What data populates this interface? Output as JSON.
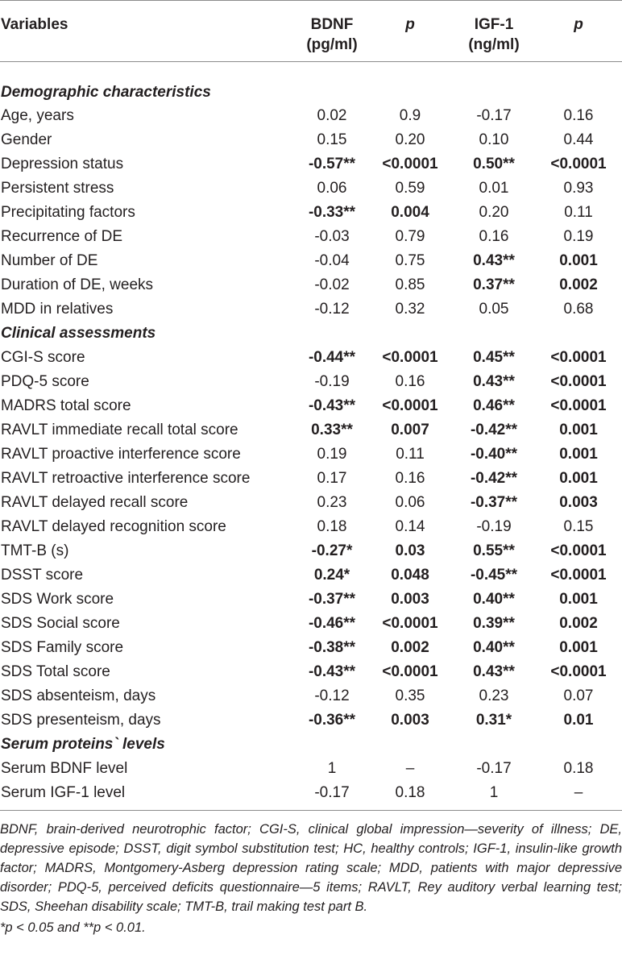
{
  "headers": [
    "Variables",
    "BDNF (pg/ml)",
    "p",
    "IGF-1 (ng/ml)",
    "p"
  ],
  "header_lines": {
    "bdnf": [
      "BDNF",
      "(pg/ml)"
    ],
    "igf": [
      "IGF-1",
      "(ng/ml)"
    ]
  },
  "rows": [
    {
      "section": "Demographic characteristics"
    },
    {
      "label": "Age, years",
      "cells": [
        {
          "v": "0.02",
          "b": false
        },
        {
          "v": "0.9",
          "b": false
        },
        {
          "v": "-0.17",
          "b": false
        },
        {
          "v": "0.16",
          "b": false
        }
      ]
    },
    {
      "label": "Gender",
      "cells": [
        {
          "v": "0.15",
          "b": false
        },
        {
          "v": "0.20",
          "b": false
        },
        {
          "v": "0.10",
          "b": false
        },
        {
          "v": "0.44",
          "b": false
        }
      ]
    },
    {
      "label": "Depression status",
      "cells": [
        {
          "v": "-0.57**",
          "b": true
        },
        {
          "v": "<0.0001",
          "b": true
        },
        {
          "v": "0.50**",
          "b": true
        },
        {
          "v": "<0.0001",
          "b": true
        }
      ]
    },
    {
      "label": "Persistent stress",
      "cells": [
        {
          "v": "0.06",
          "b": false
        },
        {
          "v": "0.59",
          "b": false
        },
        {
          "v": "0.01",
          "b": false
        },
        {
          "v": "0.93",
          "b": false
        }
      ]
    },
    {
      "label": "Precipitating factors",
      "cells": [
        {
          "v": "-0.33**",
          "b": true
        },
        {
          "v": "0.004",
          "b": true
        },
        {
          "v": "0.20",
          "b": false
        },
        {
          "v": "0.11",
          "b": false
        }
      ]
    },
    {
      "label": "Recurrence of DE",
      "cells": [
        {
          "v": "-0.03",
          "b": false
        },
        {
          "v": "0.79",
          "b": false
        },
        {
          "v": "0.16",
          "b": false
        },
        {
          "v": "0.19",
          "b": false
        }
      ]
    },
    {
      "label": "Number of DE",
      "cells": [
        {
          "v": "-0.04",
          "b": false
        },
        {
          "v": "0.75",
          "b": false
        },
        {
          "v": "0.43**",
          "b": true
        },
        {
          "v": "0.001",
          "b": true
        }
      ]
    },
    {
      "label": "Duration of DE, weeks",
      "cells": [
        {
          "v": "-0.02",
          "b": false
        },
        {
          "v": "0.85",
          "b": false
        },
        {
          "v": "0.37**",
          "b": true
        },
        {
          "v": "0.002",
          "b": true
        }
      ]
    },
    {
      "label": "MDD in relatives",
      "cells": [
        {
          "v": "-0.12",
          "b": false
        },
        {
          "v": "0.32",
          "b": false
        },
        {
          "v": "0.05",
          "b": false
        },
        {
          "v": "0.68",
          "b": false
        }
      ]
    },
    {
      "section": "Clinical assessments"
    },
    {
      "label": "CGI-S score",
      "cells": [
        {
          "v": "-0.44**",
          "b": true
        },
        {
          "v": "<0.0001",
          "b": true
        },
        {
          "v": "0.45**",
          "b": true
        },
        {
          "v": "<0.0001",
          "b": true
        }
      ]
    },
    {
      "label": "PDQ-5 score",
      "cells": [
        {
          "v": "-0.19",
          "b": false
        },
        {
          "v": "0.16",
          "b": false
        },
        {
          "v": "0.43**",
          "b": true
        },
        {
          "v": "<0.0001",
          "b": true
        }
      ]
    },
    {
      "label": "MADRS total score",
      "cells": [
        {
          "v": "-0.43**",
          "b": true
        },
        {
          "v": "<0.0001",
          "b": true
        },
        {
          "v": "0.46**",
          "b": true
        },
        {
          "v": "<0.0001",
          "b": true
        }
      ]
    },
    {
      "label": "RAVLT immediate recall total score",
      "cells": [
        {
          "v": "0.33**",
          "b": true
        },
        {
          "v": "0.007",
          "b": true
        },
        {
          "v": "-0.42**",
          "b": true
        },
        {
          "v": "0.001",
          "b": true
        }
      ]
    },
    {
      "label": "RAVLT proactive interference score",
      "cells": [
        {
          "v": "0.19",
          "b": false
        },
        {
          "v": "0.11",
          "b": false
        },
        {
          "v": "-0.40**",
          "b": true
        },
        {
          "v": "0.001",
          "b": true
        }
      ]
    },
    {
      "label": "RAVLT retroactive interference score",
      "cells": [
        {
          "v": "0.17",
          "b": false
        },
        {
          "v": "0.16",
          "b": false
        },
        {
          "v": "-0.42**",
          "b": true
        },
        {
          "v": "0.001",
          "b": true
        }
      ]
    },
    {
      "label": "RAVLT delayed recall score",
      "cells": [
        {
          "v": "0.23",
          "b": false
        },
        {
          "v": "0.06",
          "b": false
        },
        {
          "v": "-0.37**",
          "b": true
        },
        {
          "v": "0.003",
          "b": true
        }
      ]
    },
    {
      "label": "RAVLT delayed recognition score",
      "cells": [
        {
          "v": "0.18",
          "b": false
        },
        {
          "v": "0.14",
          "b": false
        },
        {
          "v": "-0.19",
          "b": false
        },
        {
          "v": "0.15",
          "b": false
        }
      ]
    },
    {
      "label": "TMT-B (s)",
      "cells": [
        {
          "v": "-0.27*",
          "b": true
        },
        {
          "v": "0.03",
          "b": true
        },
        {
          "v": "0.55**",
          "b": true
        },
        {
          "v": "<0.0001",
          "b": true
        }
      ]
    },
    {
      "label": "DSST score",
      "cells": [
        {
          "v": "0.24*",
          "b": true
        },
        {
          "v": "0.048",
          "b": true
        },
        {
          "v": "-0.45**",
          "b": true
        },
        {
          "v": "<0.0001",
          "b": true
        }
      ]
    },
    {
      "label": "SDS Work score",
      "cells": [
        {
          "v": "-0.37**",
          "b": true
        },
        {
          "v": "0.003",
          "b": true
        },
        {
          "v": "0.40**",
          "b": true
        },
        {
          "v": "0.001",
          "b": true
        }
      ]
    },
    {
      "label": "SDS Social score",
      "cells": [
        {
          "v": "-0.46**",
          "b": true
        },
        {
          "v": "<0.0001",
          "b": true
        },
        {
          "v": "0.39**",
          "b": true
        },
        {
          "v": "0.002",
          "b": true
        }
      ]
    },
    {
      "label": "SDS Family score",
      "cells": [
        {
          "v": "-0.38**",
          "b": true
        },
        {
          "v": "0.002",
          "b": true
        },
        {
          "v": "0.40**",
          "b": true
        },
        {
          "v": "0.001",
          "b": true
        }
      ]
    },
    {
      "label": "SDS Total score",
      "cells": [
        {
          "v": "-0.43**",
          "b": true
        },
        {
          "v": "<0.0001",
          "b": true
        },
        {
          "v": "0.43**",
          "b": true
        },
        {
          "v": "<0.0001",
          "b": true
        }
      ]
    },
    {
      "label": "SDS absenteism, days",
      "cells": [
        {
          "v": "-0.12",
          "b": false
        },
        {
          "v": "0.35",
          "b": false
        },
        {
          "v": "0.23",
          "b": false
        },
        {
          "v": "0.07",
          "b": false
        }
      ]
    },
    {
      "label": "SDS presenteism, days",
      "cells": [
        {
          "v": "-0.36**",
          "b": true
        },
        {
          "v": "0.003",
          "b": true
        },
        {
          "v": "0.31*",
          "b": true
        },
        {
          "v": "0.01",
          "b": true
        }
      ]
    },
    {
      "section": "Serum proteins` levels"
    },
    {
      "label": "Serum BDNF level",
      "cells": [
        {
          "v": "1",
          "b": false
        },
        {
          "v": "–",
          "b": false
        },
        {
          "v": "-0.17",
          "b": false
        },
        {
          "v": "0.18",
          "b": false
        }
      ]
    },
    {
      "label": "Serum IGF-1 level",
      "cells": [
        {
          "v": "-0.17",
          "b": false
        },
        {
          "v": "0.18",
          "b": false
        },
        {
          "v": "1",
          "b": false
        },
        {
          "v": "–",
          "b": false
        }
      ]
    }
  ],
  "footnote": "BDNF, brain-derived neurotrophic factor; CGI-S, clinical global impression—severity of illness; DE, depressive episode; DSST, digit symbol substitution test; HC, healthy controls; IGF-1, insulin-like growth factor; MADRS, Montgomery-Asberg depression rating scale; MDD, patients with major depressive disorder; PDQ-5, perceived deficits questionnaire—5 items; RAVLT, Rey auditory verbal learning test; SDS, Sheehan disability scale; TMT-B, trail making test part B.",
  "significance_note": "*p < 0.05 and **p < 0.01."
}
